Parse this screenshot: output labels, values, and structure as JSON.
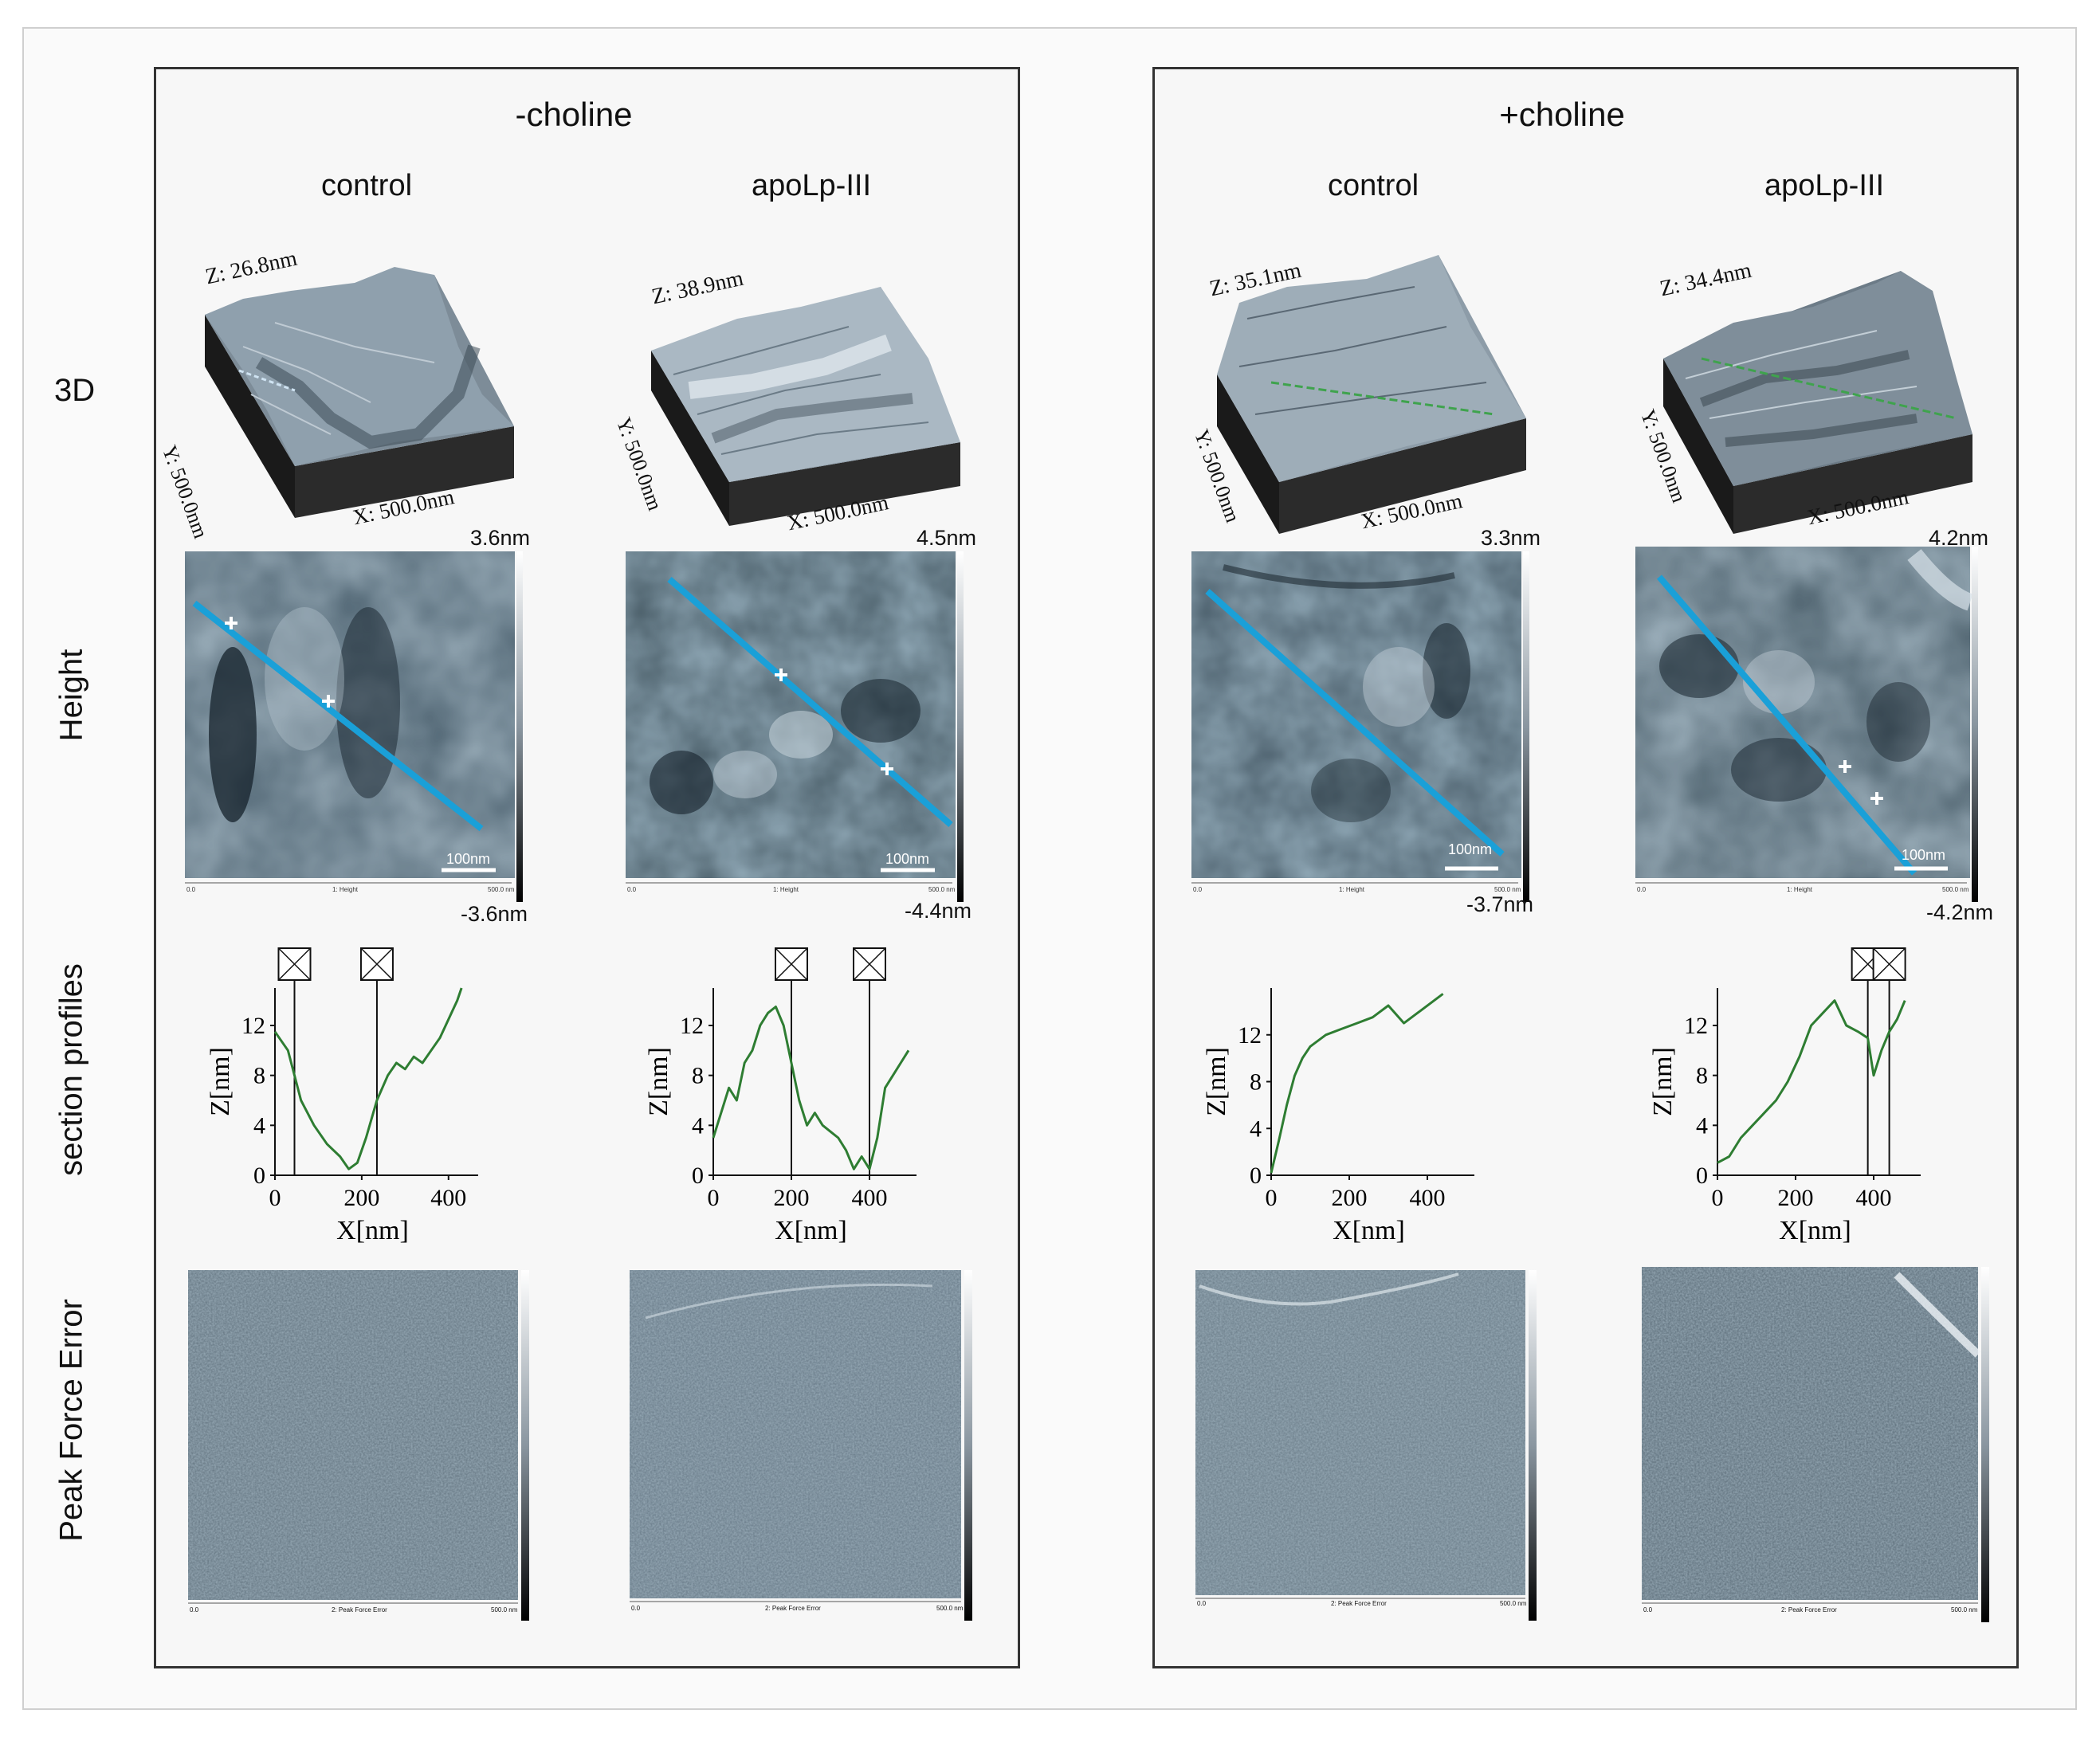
{
  "groups": [
    {
      "title": "-choline"
    },
    {
      "title": "+choline"
    }
  ],
  "column_labels": [
    "control",
    "apoLp-III",
    "control",
    "apoLp-III"
  ],
  "row_labels": {
    "r3d": "3D",
    "height": "Height",
    "profiles": "section profiles",
    "pfe": "Peak Force Error"
  },
  "panels": [
    {
      "z_label": "Z: 26.8nm",
      "x_label": "X: 500.0nm",
      "y_label": "Y: 500.0nm",
      "cbar_max": "3.6nm",
      "cbar_min": "-3.6nm",
      "scale_bar": "100nm",
      "footer": "1: Height",
      "footer_left": "0.0",
      "footer_right": "500.0 nm",
      "pfe_footer": "2: Peak Force Error",
      "pfe_left": "0.0",
      "pfe_right": "500.0 nm"
    },
    {
      "z_label": "Z: 38.9nm",
      "x_label": "X: 500.0nm",
      "y_label": "Y: 500.0nm",
      "cbar_max": "4.5nm",
      "cbar_min": "-4.4nm",
      "scale_bar": "100nm",
      "footer": "1: Height",
      "footer_left": "0.0",
      "footer_right": "500.0 nm",
      "pfe_footer": "2: Peak Force Error",
      "pfe_left": "0.0",
      "pfe_right": "500.0 nm"
    },
    {
      "z_label": "Z: 35.1nm",
      "x_label": "X: 500.0nm",
      "y_label": "Y: 500.0nm",
      "cbar_max": "3.3nm",
      "cbar_min": "-3.7nm",
      "scale_bar": "100nm",
      "footer": "1: Height",
      "footer_left": "0.0",
      "footer_right": "500.0 nm",
      "pfe_footer": "2: Peak Force Error",
      "pfe_left": "0.0",
      "pfe_right": "500.0 nm"
    },
    {
      "z_label": "Z: 34.4nm",
      "x_label": "X: 500.0nm",
      "y_label": "Y: 500.0nm",
      "cbar_max": "4.2nm",
      "cbar_min": "-4.2nm",
      "scale_bar": "100nm",
      "footer": "1: Height",
      "footer_left": "0.0",
      "footer_right": "500.0 nm",
      "pfe_footer": "2: Peak Force Error",
      "pfe_left": "0.0",
      "pfe_right": "500.0 nm"
    }
  ],
  "chart_data": [
    {
      "type": "line",
      "panel": "-choline control",
      "xlabel": "X[nm]",
      "ylabel": "Z[nm]",
      "xlim": [
        0,
        450
      ],
      "ylim": [
        0,
        15
      ],
      "x_ticks": [
        "0",
        "200",
        "400"
      ],
      "y_ticks": [
        "0",
        "4",
        "8",
        "12"
      ],
      "cursors": [
        45,
        235
      ],
      "x": [
        0,
        30,
        60,
        90,
        120,
        150,
        170,
        190,
        210,
        235,
        260,
        280,
        300,
        320,
        340,
        360,
        380,
        400,
        420,
        430
      ],
      "y": [
        11.5,
        10,
        6,
        4,
        2.5,
        1.5,
        0.5,
        1,
        3,
        6,
        8,
        9,
        8.5,
        9.5,
        9,
        10,
        11,
        12.5,
        14,
        15
      ]
    },
    {
      "type": "line",
      "panel": "-choline apoLp-III",
      "xlabel": "X[nm]",
      "ylabel": "Z[nm]",
      "xlim": [
        0,
        500
      ],
      "ylim": [
        0,
        15
      ],
      "x_ticks": [
        "0",
        "200",
        "400"
      ],
      "y_ticks": [
        "0",
        "4",
        "8",
        "12"
      ],
      "cursors": [
        200,
        400
      ],
      "x": [
        0,
        20,
        40,
        60,
        80,
        100,
        120,
        140,
        160,
        180,
        200,
        220,
        240,
        260,
        280,
        300,
        320,
        340,
        360,
        380,
        400,
        420,
        440,
        460,
        480,
        500
      ],
      "y": [
        3,
        5,
        7,
        6,
        9,
        10,
        12,
        13,
        13.5,
        12,
        9,
        6,
        4,
        5,
        4,
        3.5,
        3,
        2,
        0.5,
        1.5,
        0.5,
        3,
        7,
        8,
        9,
        10
      ]
    },
    {
      "type": "line",
      "panel": "+choline control",
      "xlabel": "X[nm]",
      "ylabel": "Z[nm]",
      "xlim": [
        0,
        500
      ],
      "ylim": [
        0,
        16
      ],
      "x_ticks": [
        "0",
        "200",
        "400"
      ],
      "y_ticks": [
        "0",
        "4",
        "8",
        "12"
      ],
      "cursors": [],
      "x": [
        0,
        20,
        40,
        60,
        80,
        100,
        140,
        180,
        220,
        260,
        300,
        340,
        380,
        420,
        440
      ],
      "y": [
        0.2,
        3,
        6,
        8.5,
        10,
        11,
        12,
        12.5,
        13,
        13.5,
        14.5,
        13,
        14,
        15,
        15.5
      ]
    },
    {
      "type": "line",
      "panel": "+choline apoLp-III",
      "xlabel": "X[nm]",
      "ylabel": "Z[nm]",
      "xlim": [
        0,
        500
      ],
      "ylim": [
        0,
        15
      ],
      "x_ticks": [
        "0",
        "200",
        "400"
      ],
      "y_ticks": [
        "0",
        "4",
        "8",
        "12"
      ],
      "cursors": [
        385,
        440
      ],
      "x": [
        0,
        30,
        60,
        90,
        120,
        150,
        180,
        210,
        240,
        270,
        300,
        330,
        360,
        385,
        400,
        420,
        440,
        460,
        480
      ],
      "y": [
        1,
        1.5,
        3,
        4,
        5,
        6,
        7.5,
        9.5,
        12,
        13,
        14,
        12,
        11.5,
        11,
        8,
        10,
        11.5,
        12.5,
        14
      ]
    }
  ]
}
